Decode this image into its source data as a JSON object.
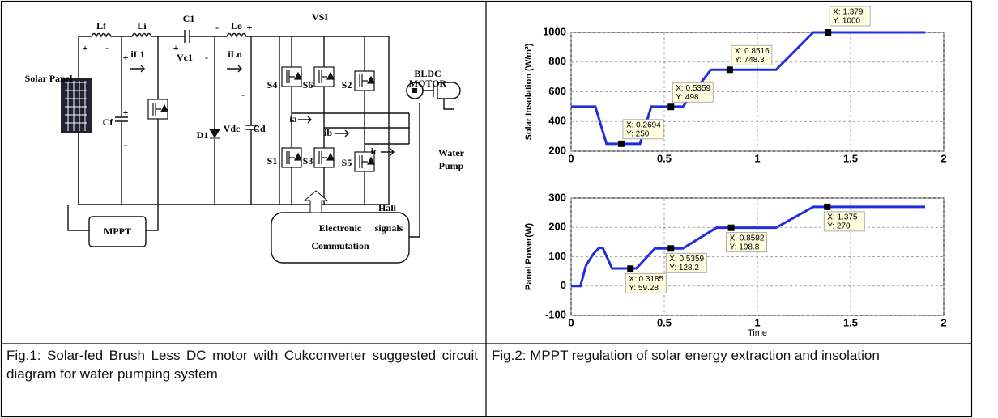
{
  "circuit": {
    "labels": [
      "Lf",
      "Li",
      "C1",
      "Lo",
      "+",
      "VSI",
      "Solar Panel",
      "+",
      "-",
      "+",
      "iL1",
      "+",
      "Vc1",
      "-",
      "-",
      "iLo",
      "Cf",
      "+",
      "-",
      "D1",
      "Vdc",
      "Cd",
      "-",
      "S4",
      "S6",
      "S2",
      "S1",
      "S3",
      "S5",
      "ia",
      "ib",
      "ic",
      "BLDC",
      "MOTOR",
      "Water",
      "Pump",
      "Hall",
      "signals",
      "MPPT",
      "Electronic",
      "Commutation"
    ]
  },
  "chart_data": [
    {
      "type": "line",
      "ylabel": "Solar Insolation (W/m²)",
      "x": [
        0,
        0.13,
        0.19,
        0.3,
        0.37,
        0.43,
        0.6,
        0.75,
        1.1,
        1.3,
        1.9
      ],
      "series": [
        {
          "color": "#1f2fe0",
          "values": [
            500,
            500,
            250,
            250,
            250,
            500,
            500,
            748.3,
            748.3,
            1000,
            1000
          ]
        }
      ],
      "xlim": [
        0,
        2
      ],
      "xticks": [
        0,
        0.5,
        1,
        1.5,
        2
      ],
      "ylim": [
        200,
        1000
      ],
      "yticks": [
        200,
        400,
        600,
        800,
        1000
      ],
      "grid": true,
      "annotations": [
        {
          "x": 0.2694,
          "y": 250,
          "text_x": "X: 0.2694",
          "text_y": "Y: 250"
        },
        {
          "x": 0.5359,
          "y": 498,
          "text_x": "X: 0.5359",
          "text_y": "Y: 498"
        },
        {
          "x": 0.8516,
          "y": 748.3,
          "text_x": "X: 0.8516",
          "text_y": "Y: 748.3"
        },
        {
          "x": 1.379,
          "y": 1000,
          "text_x": "X: 1.379",
          "text_y": "Y: 1000"
        }
      ]
    },
    {
      "type": "line",
      "ylabel": "Panel Power(W)",
      "xlabel": "Time",
      "x": [
        0,
        0.05,
        0.08,
        0.12,
        0.15,
        0.17,
        0.22,
        0.35,
        0.45,
        0.6,
        0.78,
        1.1,
        1.3,
        1.9
      ],
      "series": [
        {
          "color": "#1f2fe0",
          "values": [
            0,
            0,
            70,
            110,
            130,
            130,
            60,
            60,
            128.2,
            128.2,
            198.8,
            198.8,
            270,
            270
          ]
        }
      ],
      "xlim": [
        0,
        2
      ],
      "xticks": [
        0,
        0.5,
        1,
        1.5,
        2
      ],
      "ylim": [
        -100,
        300
      ],
      "yticks": [
        -100,
        0,
        100,
        200,
        300
      ],
      "grid": true,
      "annotations": [
        {
          "x": 0.3185,
          "y": 59.28,
          "text_x": "X: 0.3185",
          "text_y": "Y: 59.28"
        },
        {
          "x": 0.5359,
          "y": 128.2,
          "text_x": "X: 0.5359",
          "text_y": "Y: 128.2"
        },
        {
          "x": 0.8592,
          "y": 198.8,
          "text_x": "X: 0.8592",
          "text_y": "Y: 198.8"
        },
        {
          "x": 1.375,
          "y": 270,
          "text_x": "X: 1.375",
          "text_y": "Y: 270"
        }
      ]
    }
  ],
  "captions": [
    "Fig.1: Solar-fed Brush Less DC motor with Cukconverter suggested circuit diagram for water pumping system",
    "Fig.2: MPPT regulation of solar energy extraction and insolation"
  ]
}
